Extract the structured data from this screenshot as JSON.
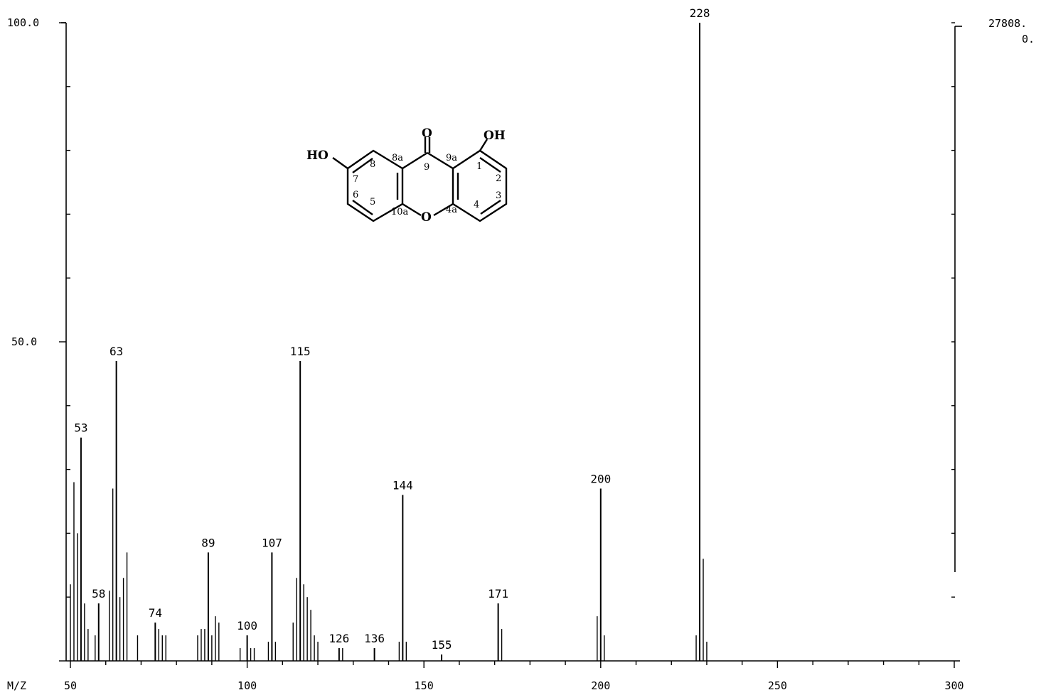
{
  "chart_data": {
    "type": "bar",
    "x_label": "M/Z",
    "y_axis_left_ticks": [
      "100.0",
      "50.0"
    ],
    "y_axis_right_labels": [
      "27808.",
      "0."
    ],
    "x_ticks": [
      50,
      100,
      150,
      200,
      250,
      300
    ],
    "xlim": [
      50,
      300
    ],
    "ylim": [
      0,
      100
    ],
    "peaks": [
      {
        "mz": 50,
        "intensity": 12
      },
      {
        "mz": 51,
        "intensity": 28
      },
      {
        "mz": 52,
        "intensity": 20
      },
      {
        "mz": 53,
        "intensity": 35,
        "label": "53"
      },
      {
        "mz": 54,
        "intensity": 9
      },
      {
        "mz": 55,
        "intensity": 5
      },
      {
        "mz": 57,
        "intensity": 4
      },
      {
        "mz": 58,
        "intensity": 9,
        "label": "58"
      },
      {
        "mz": 61,
        "intensity": 11
      },
      {
        "mz": 62,
        "intensity": 27
      },
      {
        "mz": 63,
        "intensity": 47,
        "label": "63"
      },
      {
        "mz": 64,
        "intensity": 10
      },
      {
        "mz": 65,
        "intensity": 13
      },
      {
        "mz": 66,
        "intensity": 17
      },
      {
        "mz": 69,
        "intensity": 4
      },
      {
        "mz": 74,
        "intensity": 6,
        "label": "74"
      },
      {
        "mz": 75,
        "intensity": 5
      },
      {
        "mz": 76,
        "intensity": 4
      },
      {
        "mz": 77,
        "intensity": 4
      },
      {
        "mz": 86,
        "intensity": 4
      },
      {
        "mz": 87,
        "intensity": 5
      },
      {
        "mz": 88,
        "intensity": 5
      },
      {
        "mz": 89,
        "intensity": 17,
        "label": "89"
      },
      {
        "mz": 90,
        "intensity": 4
      },
      {
        "mz": 91,
        "intensity": 7
      },
      {
        "mz": 92,
        "intensity": 6
      },
      {
        "mz": 98,
        "intensity": 2
      },
      {
        "mz": 100,
        "intensity": 4,
        "label": "100"
      },
      {
        "mz": 101,
        "intensity": 2
      },
      {
        "mz": 102,
        "intensity": 2
      },
      {
        "mz": 106,
        "intensity": 3
      },
      {
        "mz": 107,
        "intensity": 17,
        "label": "107"
      },
      {
        "mz": 108,
        "intensity": 3
      },
      {
        "mz": 113,
        "intensity": 6
      },
      {
        "mz": 114,
        "intensity": 13
      },
      {
        "mz": 115,
        "intensity": 47,
        "label": "115"
      },
      {
        "mz": 116,
        "intensity": 12
      },
      {
        "mz": 117,
        "intensity": 10
      },
      {
        "mz": 118,
        "intensity": 8
      },
      {
        "mz": 119,
        "intensity": 4
      },
      {
        "mz": 120,
        "intensity": 3
      },
      {
        "mz": 126,
        "intensity": 2,
        "label": "126"
      },
      {
        "mz": 127,
        "intensity": 2
      },
      {
        "mz": 136,
        "intensity": 2,
        "label": "136"
      },
      {
        "mz": 143,
        "intensity": 3
      },
      {
        "mz": 144,
        "intensity": 26,
        "label": "144"
      },
      {
        "mz": 145,
        "intensity": 3
      },
      {
        "mz": 155,
        "intensity": 1,
        "label": "155"
      },
      {
        "mz": 171,
        "intensity": 9,
        "label": "171"
      },
      {
        "mz": 172,
        "intensity": 5
      },
      {
        "mz": 199,
        "intensity": 7
      },
      {
        "mz": 200,
        "intensity": 27,
        "label": "200"
      },
      {
        "mz": 201,
        "intensity": 4
      },
      {
        "mz": 227,
        "intensity": 4
      },
      {
        "mz": 228,
        "intensity": 100,
        "label": "228"
      },
      {
        "mz": 229,
        "intensity": 16
      },
      {
        "mz": 230,
        "intensity": 3
      }
    ]
  },
  "structure": {
    "atoms": {
      "carbonyl_o": "O",
      "ring_o": "O",
      "ho_left": "HO",
      "oh_right": "OH"
    },
    "numbers": [
      "1",
      "2",
      "3",
      "4",
      "4a",
      "5",
      "6",
      "7",
      "8",
      "8a",
      "9",
      "9a",
      "10a"
    ]
  }
}
